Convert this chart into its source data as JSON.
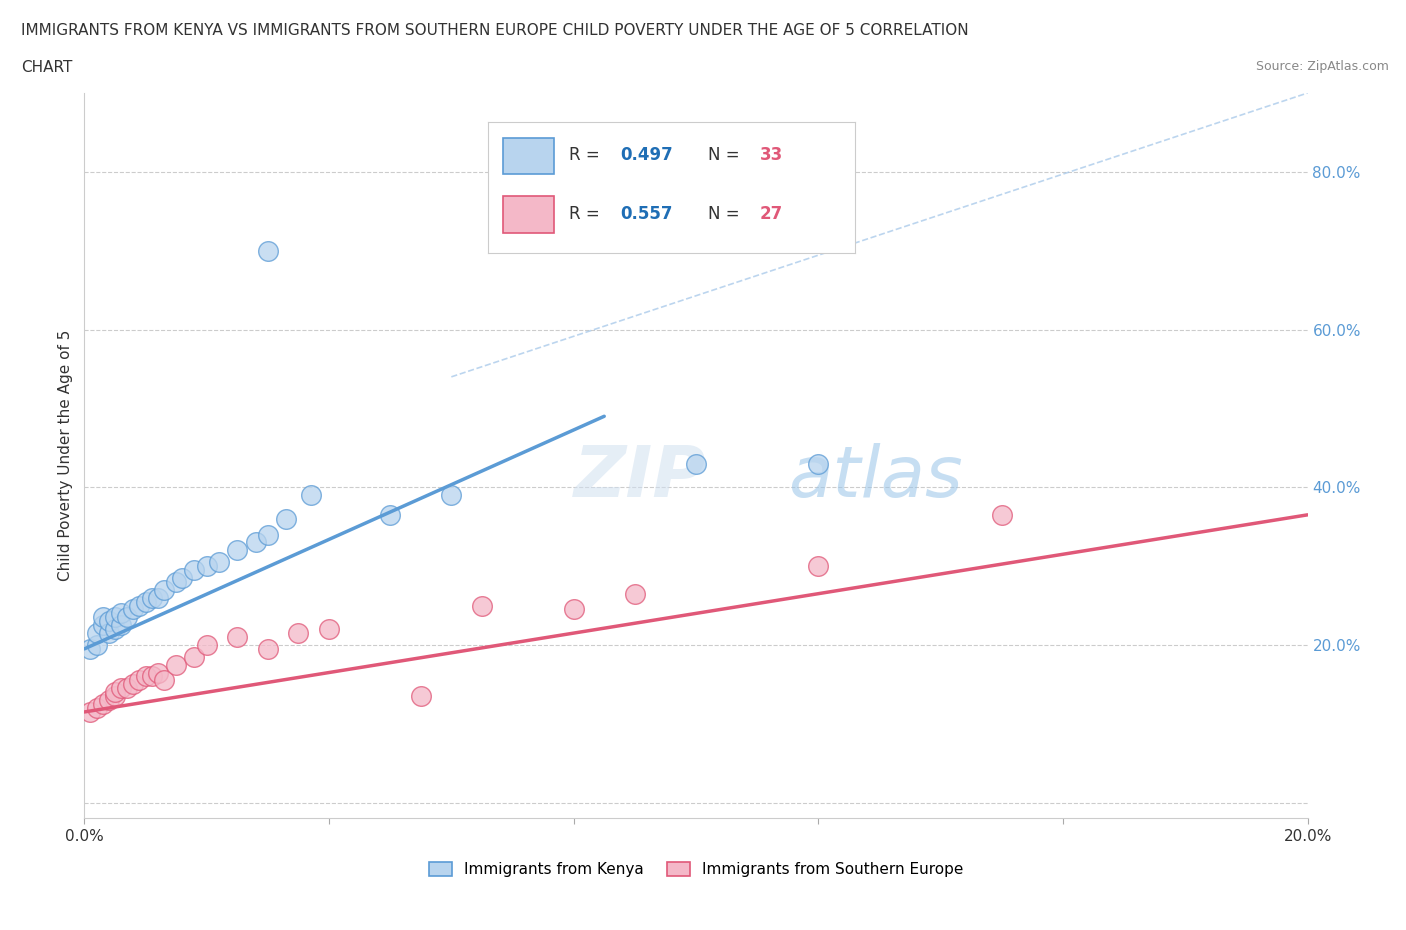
{
  "title_line1": "IMMIGRANTS FROM KENYA VS IMMIGRANTS FROM SOUTHERN EUROPE CHILD POVERTY UNDER THE AGE OF 5 CORRELATION",
  "title_line2": "CHART",
  "source": "Source: ZipAtlas.com",
  "ylabel": "Child Poverty Under the Age of 5",
  "xlim": [
    0.0,
    0.2
  ],
  "ylim": [
    -0.02,
    0.9
  ],
  "kenya_color": "#b8d4ee",
  "kenya_edge_color": "#5b9bd5",
  "southern_europe_color": "#f4b8c8",
  "southern_europe_edge_color": "#e05878",
  "kenya_R": 0.497,
  "kenya_N": 33,
  "southern_europe_R": 0.557,
  "southern_europe_N": 27,
  "kenya_scatter_x": [
    0.001,
    0.002,
    0.002,
    0.003,
    0.003,
    0.004,
    0.004,
    0.005,
    0.005,
    0.006,
    0.006,
    0.007,
    0.008,
    0.009,
    0.01,
    0.011,
    0.012,
    0.013,
    0.015,
    0.016,
    0.018,
    0.02,
    0.022,
    0.025,
    0.028,
    0.03,
    0.033,
    0.037,
    0.05,
    0.06,
    0.1,
    0.12,
    0.03
  ],
  "kenya_scatter_y": [
    0.195,
    0.2,
    0.215,
    0.225,
    0.235,
    0.215,
    0.23,
    0.22,
    0.235,
    0.225,
    0.24,
    0.235,
    0.245,
    0.25,
    0.255,
    0.26,
    0.26,
    0.27,
    0.28,
    0.285,
    0.295,
    0.3,
    0.305,
    0.32,
    0.33,
    0.34,
    0.36,
    0.39,
    0.365,
    0.39,
    0.43,
    0.43,
    0.7
  ],
  "southern_europe_scatter_x": [
    0.001,
    0.002,
    0.003,
    0.004,
    0.005,
    0.005,
    0.006,
    0.007,
    0.008,
    0.009,
    0.01,
    0.011,
    0.012,
    0.013,
    0.015,
    0.018,
    0.02,
    0.025,
    0.03,
    0.035,
    0.04,
    0.055,
    0.065,
    0.08,
    0.09,
    0.12,
    0.15
  ],
  "southern_europe_scatter_y": [
    0.115,
    0.12,
    0.125,
    0.13,
    0.135,
    0.14,
    0.145,
    0.145,
    0.15,
    0.155,
    0.16,
    0.16,
    0.165,
    0.155,
    0.175,
    0.185,
    0.2,
    0.21,
    0.195,
    0.215,
    0.22,
    0.135,
    0.25,
    0.245,
    0.265,
    0.3,
    0.365
  ],
  "kenya_line_x": [
    0.0,
    0.085
  ],
  "kenya_line_y": [
    0.195,
    0.49
  ],
  "southern_europe_line_x": [
    0.0,
    0.2
  ],
  "southern_europe_line_y": [
    0.115,
    0.365
  ],
  "diagonal_line_x": [
    0.06,
    0.2
  ],
  "diagonal_line_y": [
    0.54,
    0.9
  ],
  "watermark_zip": "ZIP",
  "watermark_atlas": "atlas",
  "legend_R_color": "#1f6eb5",
  "legend_N_color": "#e05878",
  "background_color": "#ffffff",
  "grid_color": "#cccccc",
  "y_tick_color": "#5b9bd5"
}
